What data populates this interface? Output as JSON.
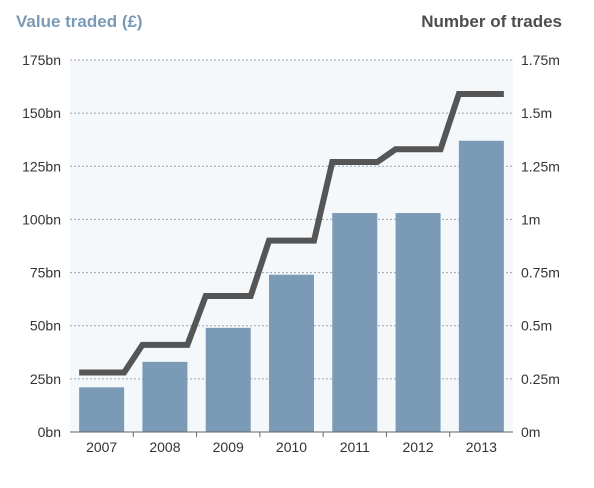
{
  "chart_data": {
    "type": "bar+line",
    "categories": [
      "2007",
      "2008",
      "2009",
      "2010",
      "2011",
      "2012",
      "2013"
    ],
    "left_axis": {
      "title": "Value traded (£)",
      "ylim": [
        0,
        175
      ],
      "ticks": [
        0,
        25,
        50,
        75,
        100,
        125,
        150,
        175
      ],
      "tick_labels": [
        "0bn",
        "25bn",
        "50bn",
        "75bn",
        "100bn",
        "125bn",
        "150bn",
        "175bn"
      ]
    },
    "right_axis": {
      "title": "Number of trades",
      "ylim": [
        0,
        1.75
      ],
      "ticks": [
        0,
        0.25,
        0.5,
        0.75,
        1,
        1.25,
        1.5,
        1.75
      ],
      "tick_labels": [
        "0m",
        "0.25m",
        "0.5m",
        "0.75m",
        "1m",
        "1.25m",
        "1.5m",
        "1.75m"
      ]
    },
    "series": [
      {
        "type": "bar",
        "axis": "left",
        "unit": "bn",
        "values": [
          21,
          33,
          49,
          74,
          103,
          103,
          137
        ]
      },
      {
        "type": "step-line",
        "axis": "right",
        "unit": "m",
        "values": [
          0.28,
          0.41,
          0.64,
          0.9,
          1.27,
          1.33,
          1.59
        ]
      }
    ],
    "grid": true,
    "colors": {
      "bar": "#7a9ab5",
      "line": "#555555",
      "background": "#f5f8fb",
      "grid": "#9aa6b2",
      "left_title": "#7a9ab5",
      "right_title": "#4d4d4d"
    }
  }
}
